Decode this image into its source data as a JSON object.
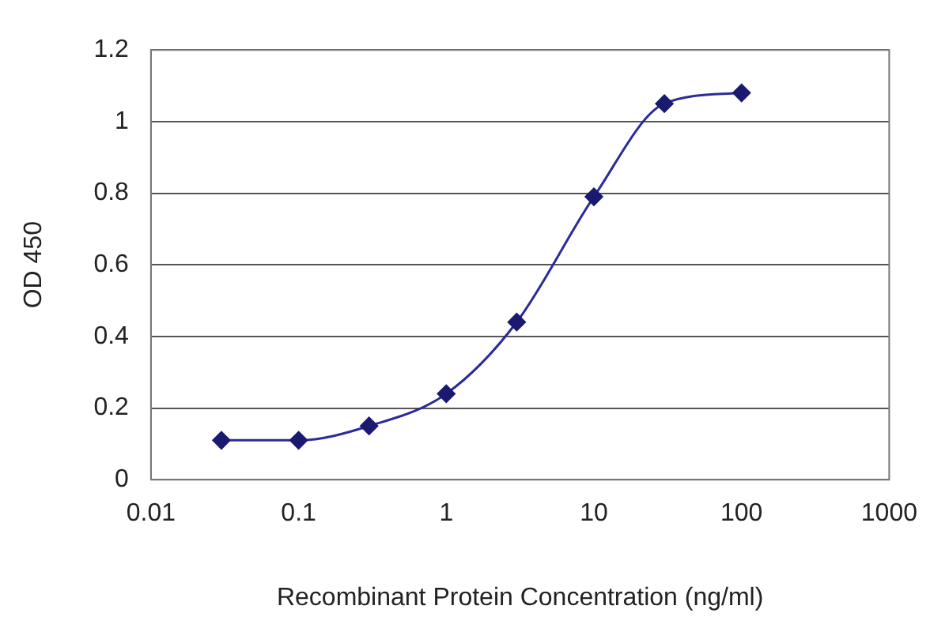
{
  "chart_data": {
    "type": "line",
    "xlabel": "Recombinant Protein Concentration (ng/ml)",
    "ylabel": "OD 450",
    "x": [
      0.03,
      0.1,
      0.3,
      1,
      3,
      10,
      30,
      100
    ],
    "values": [
      0.11,
      0.11,
      0.15,
      0.24,
      0.44,
      0.79,
      1.05,
      1.08
    ],
    "color": "#2b2b9a",
    "marker": "diamond",
    "line_style": "solid",
    "log": "x",
    "grid": "y",
    "xlim": [
      0.01,
      1000
    ],
    "xticks": [
      0.01,
      0.1,
      1,
      10,
      100,
      1000
    ],
    "ylim": [
      0,
      1.2
    ],
    "yticks": [
      0,
      0.2,
      0.4,
      0.6,
      0.8,
      1,
      1.2
    ]
  }
}
